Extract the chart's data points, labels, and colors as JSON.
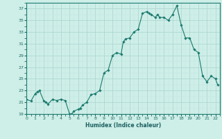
{
  "x": [
    0,
    0.5,
    1,
    1.25,
    1.5,
    2,
    2.25,
    2.5,
    3,
    3.5,
    4,
    4.5,
    5,
    5.25,
    5.5,
    6,
    6.25,
    6.5,
    7,
    7.5,
    8,
    8.5,
    9,
    9.5,
    10,
    10.5,
    11,
    11.25,
    11.5,
    12,
    12.5,
    13,
    13.5,
    14,
    14.25,
    14.5,
    15,
    15.25,
    15.5,
    16,
    16.5,
    17,
    17.5,
    18,
    18.5,
    19,
    19.5,
    20,
    20.5,
    21,
    21.5,
    22,
    22.25
  ],
  "y": [
    21.5,
    21.2,
    22.5,
    22.8,
    23.0,
    21.2,
    21.0,
    20.7,
    21.5,
    21.3,
    21.5,
    21.3,
    19.0,
    19.0,
    19.5,
    19.8,
    20.0,
    20.5,
    21.0,
    22.3,
    22.5,
    23.0,
    26.0,
    26.5,
    29.0,
    29.5,
    29.2,
    31.3,
    31.8,
    32.0,
    33.0,
    33.5,
    36.2,
    36.5,
    36.2,
    36.0,
    35.5,
    36.0,
    35.5,
    35.5,
    35.0,
    36.0,
    37.5,
    34.2,
    32.0,
    32.0,
    30.0,
    29.5,
    25.5,
    24.5,
    25.5,
    25.0,
    24.0
  ],
  "xlim": [
    0,
    22.5
  ],
  "ylim": [
    19,
    38
  ],
  "yticks": [
    19,
    21,
    23,
    25,
    27,
    29,
    31,
    33,
    35,
    37
  ],
  "xticks": [
    0,
    1,
    2,
    3,
    4,
    5,
    6,
    7,
    8,
    9,
    10,
    11,
    12,
    13,
    14,
    15,
    16,
    17,
    18,
    19,
    20,
    21,
    22
  ],
  "xlabel": "Humidex (Indice chaleur)",
  "line_color": "#1a7a6e",
  "marker_color": "#1a7a6e",
  "bg_color": "#ceeee8",
  "grid_color_major": "#aad4ce",
  "grid_color_minor": "#c0e8e2",
  "tick_color": "#1a6a60",
  "label_color": "#1a6060",
  "spine_color": "#1a7a6e"
}
